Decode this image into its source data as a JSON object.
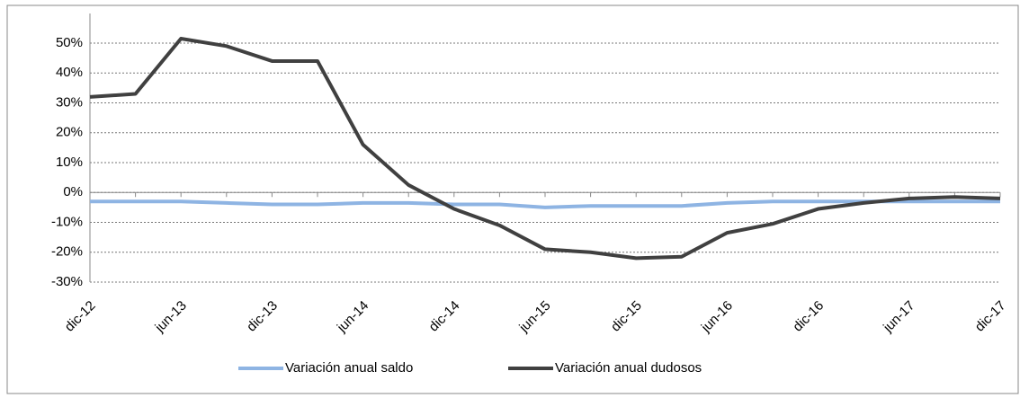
{
  "chart_data": {
    "type": "line",
    "categories": [
      "dic-12",
      null,
      "jun-13",
      null,
      "dic-13",
      null,
      "jun-14",
      null,
      "dic-14",
      null,
      "jun-15",
      null,
      "dic-15",
      null,
      "jun-16",
      null,
      "dic-16",
      null,
      "jun-17",
      null,
      "dic-17"
    ],
    "series": [
      {
        "name": "Variación anual saldo",
        "color": "#8eb4e3",
        "values": [
          -3,
          -3,
          -3,
          -3.5,
          -4,
          -4,
          -3.5,
          -3.5,
          -4,
          -4,
          -5,
          -4.5,
          -4.5,
          -4.5,
          -3.5,
          -3,
          -3,
          -3,
          -3,
          -3,
          -3
        ]
      },
      {
        "name": "Variación anual dudosos",
        "color": "#404040",
        "values": [
          32,
          33,
          51.5,
          49,
          44,
          44,
          16,
          2.5,
          -5.5,
          -11,
          -19,
          -20,
          -22,
          -21.5,
          -13.5,
          -10.5,
          -5.5,
          -3.5,
          -2,
          -1.5,
          -2
        ]
      }
    ],
    "ylim": [
      -30,
      50
    ],
    "yticks": [
      {
        "value": -30,
        "label": "-30%"
      },
      {
        "value": -20,
        "label": "-20%"
      },
      {
        "value": -10,
        "label": "-10%"
      },
      {
        "value": 0,
        "label": "0%"
      },
      {
        "value": 10,
        "label": "10%"
      },
      {
        "value": 20,
        "label": "20%"
      },
      {
        "value": 30,
        "label": "30%"
      },
      {
        "value": 40,
        "label": "40%"
      },
      {
        "value": 50,
        "label": "50%"
      }
    ],
    "grid": true,
    "legend": "bottom"
  }
}
